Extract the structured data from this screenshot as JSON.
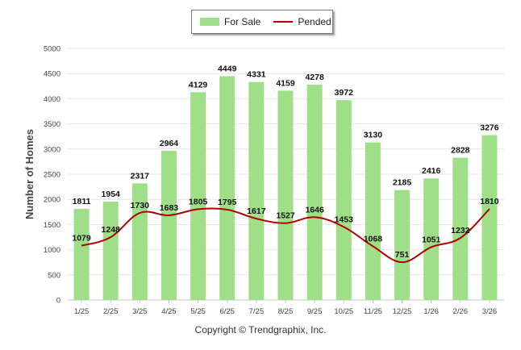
{
  "chart_data": {
    "type": "bar",
    "categories": [
      "1/25",
      "2/25",
      "3/25",
      "4/25",
      "5/25",
      "6/25",
      "7/25",
      "8/25",
      "9/25",
      "10/25",
      "11/25",
      "12/25",
      "1/26",
      "2/26",
      "3/26"
    ],
    "series": [
      {
        "name": "For Sale",
        "kind": "bar",
        "color": "#9edf88",
        "values": [
          1811,
          1954,
          2317,
          2964,
          4129,
          4449,
          4331,
          4159,
          4278,
          3972,
          3130,
          2185,
          2416,
          2828,
          3276
        ]
      },
      {
        "name": "Pended",
        "kind": "line",
        "color": "#b00000",
        "values": [
          1079,
          1248,
          1730,
          1683,
          1805,
          1795,
          1617,
          1527,
          1646,
          1453,
          1068,
          751,
          1051,
          1232,
          1810
        ]
      }
    ],
    "title": "",
    "xlabel": "",
    "ylabel": "Number of Homes",
    "ylim": [
      0,
      5000
    ],
    "yticks": [
      0,
      500,
      1000,
      1500,
      2000,
      2500,
      3000,
      3500,
      4000,
      4500,
      5000
    ],
    "grid": true,
    "legend": "top-center"
  },
  "legend": {
    "for_sale": "For Sale",
    "pended": "Pended"
  },
  "footer": {
    "copyright": "Copyright © Trendgraphix, Inc."
  }
}
